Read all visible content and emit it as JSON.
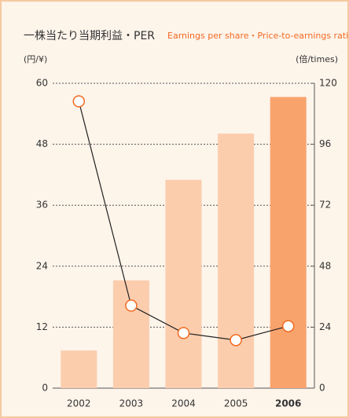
{
  "chart_data": {
    "type": "bar_line",
    "title": "一株当たり当期利益・PER",
    "subtitle": "Earnings per share・Price-to-earnings ratio",
    "y_label": "(円/¥)",
    "y2_label": "(倍/times)",
    "categories": [
      "2002",
      "2003",
      "2004",
      "2005",
      "2006"
    ],
    "series": [
      {
        "type": "bar",
        "color": "#fbcdad",
        "highlight_color": "#f9a36c",
        "highlight": [
          false,
          false,
          false,
          false,
          true
        ],
        "values": [
          7.4,
          21.2,
          41,
          50.1,
          57.3
        ]
      },
      {
        "type": "line",
        "axis": "y2",
        "color": "#222222",
        "marker_color": "#f26a21",
        "values": [
          112.9,
          32.5,
          21.7,
          18.9,
          24.4
        ]
      }
    ],
    "ylim": [
      0,
      60
    ],
    "yticks": [
      0,
      12,
      24,
      36,
      48,
      60
    ],
    "y2lim": [
      0,
      120
    ],
    "y2ticks": [
      0,
      24,
      48,
      72,
      96,
      120
    ],
    "grid": true
  }
}
